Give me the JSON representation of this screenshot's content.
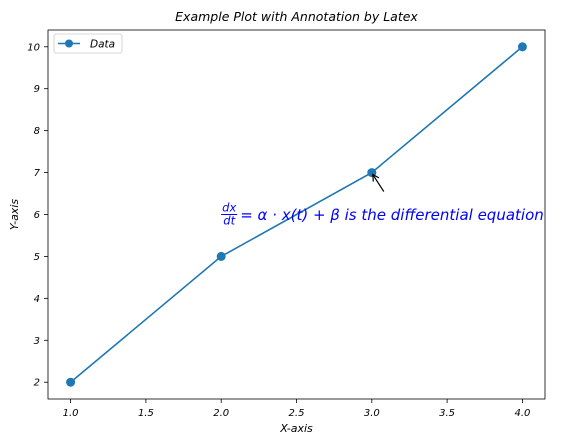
{
  "chart_data": {
    "type": "line",
    "title": "Example Plot with Annotation by Latex",
    "xlabel": "X-axis",
    "ylabel": "Y-axis",
    "xlim": [
      0.85,
      4.15
    ],
    "ylim": [
      1.6,
      10.4
    ],
    "xticks": [
      1.0,
      1.5,
      2.0,
      2.5,
      3.0,
      3.5,
      4.0
    ],
    "xtick_labels": [
      "1.0",
      "1.5",
      "2.0",
      "2.5",
      "3.0",
      "3.5",
      "4.0"
    ],
    "yticks": [
      2,
      3,
      4,
      5,
      6,
      7,
      8,
      9,
      10
    ],
    "ytick_labels": [
      "2",
      "3",
      "4",
      "5",
      "6",
      "7",
      "8",
      "9",
      "10"
    ],
    "grid": false,
    "legend_position": "top-left",
    "series": [
      {
        "name": "Data",
        "x": [
          1,
          2,
          3,
          4
        ],
        "y": [
          2,
          5,
          7,
          10
        ],
        "color": "#1f77b4",
        "marker": "circle"
      }
    ],
    "annotation": {
      "frac_num": "dx",
      "frac_den": "dt",
      "text": "= α · x(t) + β is the differential equation",
      "point": [
        3,
        7
      ],
      "text_anchor": [
        2.0,
        6.0
      ],
      "color": "#0000ff",
      "arrow": true
    }
  }
}
